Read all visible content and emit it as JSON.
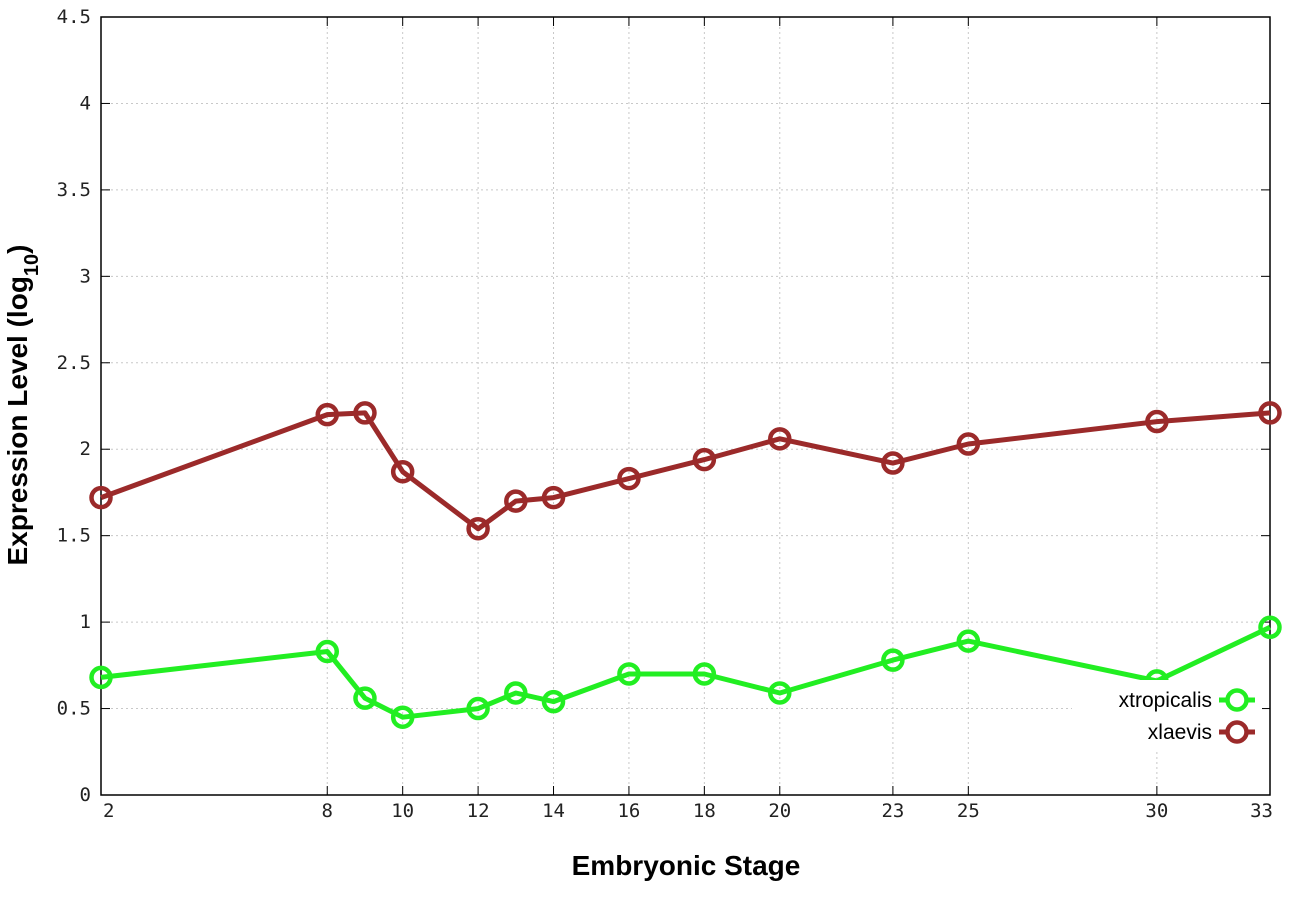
{
  "chart_data": {
    "type": "line",
    "xlabel": "Embryonic Stage",
    "ylabel": "Expression Level (log",
    "ylabel_subscript": "10",
    "ylabel_close": ")",
    "x_ticks": [
      2,
      8,
      10,
      12,
      14,
      16,
      18,
      20,
      23,
      25,
      30,
      33
    ],
    "y_ticks": [
      "0",
      "0.5",
      "1",
      "1.5",
      "2",
      "2.5",
      "3",
      "3.5",
      "4",
      "4.5"
    ],
    "xlim": [
      2,
      33
    ],
    "ylim": [
      0,
      4.5
    ],
    "grid": true,
    "legend_position": "bottom-right",
    "x": [
      2,
      8,
      9,
      10,
      12,
      13,
      14,
      16,
      18,
      20,
      23,
      25,
      30,
      33
    ],
    "series": [
      {
        "name": "xtropicalis",
        "color": "#22ee22",
        "values": [
          0.68,
          0.83,
          0.56,
          0.45,
          0.5,
          0.59,
          0.54,
          0.7,
          0.7,
          0.59,
          0.78,
          0.89,
          0.66,
          0.97
        ]
      },
      {
        "name": "xlaevis",
        "color": "#9b2a2a",
        "values": [
          1.72,
          2.2,
          2.21,
          1.87,
          1.54,
          1.7,
          1.72,
          1.83,
          1.94,
          2.06,
          1.92,
          2.03,
          2.16,
          2.21
        ]
      }
    ]
  }
}
